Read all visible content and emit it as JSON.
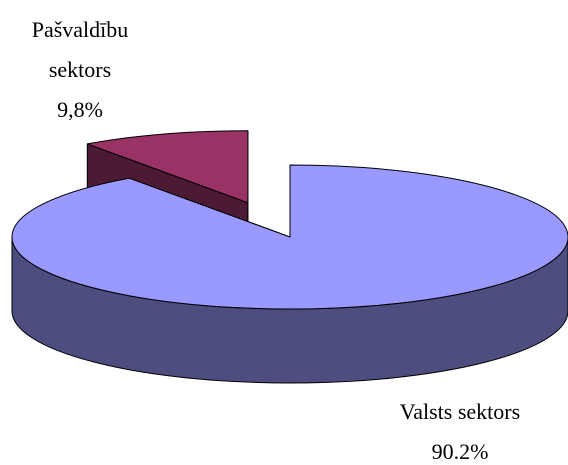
{
  "chart_data": {
    "type": "pie",
    "categories": [
      "Valsts sektors",
      "Pašvaldību sektors"
    ],
    "values": [
      90.2,
      9.8
    ],
    "value_labels": [
      "90.2%",
      "9,8%"
    ],
    "colors": [
      "#9999ff",
      "#993366"
    ]
  }
}
